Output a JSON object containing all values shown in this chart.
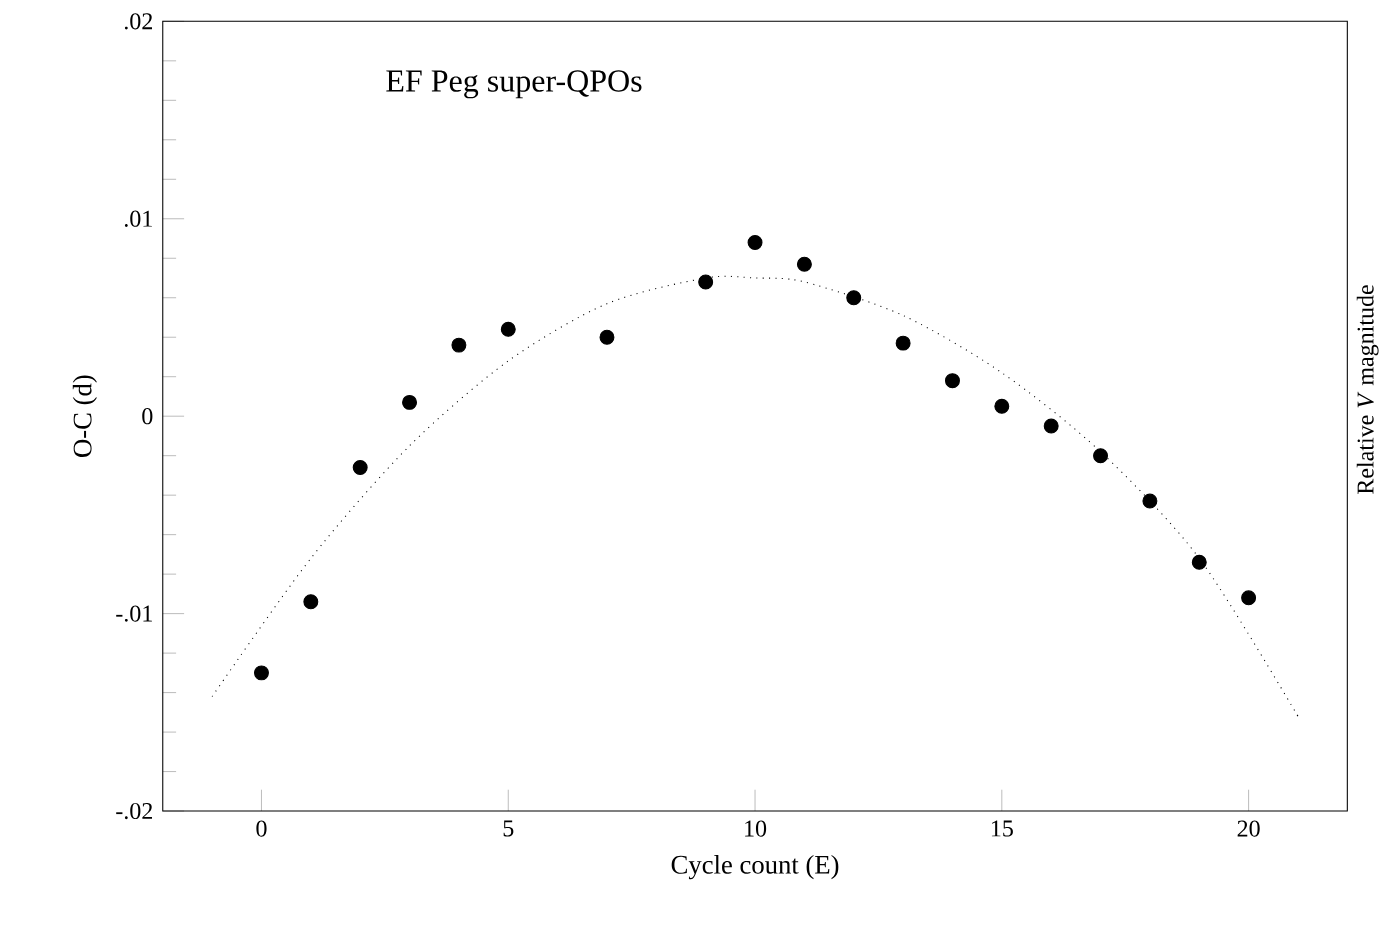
{
  "chart_data": {
    "type": "scatter",
    "title": "EF Peg super-QPOs",
    "xlabel": "Cycle count (E)",
    "ylabel": "O-C (d)",
    "y2label": "Relative *V* magnitude",
    "xlim": [
      -2,
      22
    ],
    "xticks": [
      0,
      5,
      10,
      15,
      20
    ],
    "ylim": [
      -0.02,
      0.02
    ],
    "yticks": [
      {
        "value": -0.02,
        "label": "-.02"
      },
      {
        "value": -0.01,
        "label": "-.01"
      },
      0,
      {
        "value": 0.01,
        "label": ".01"
      },
      {
        "value": 0.02,
        "label": ".02"
      }
    ],
    "grid": false,
    "series": [
      {
        "marker": "circle",
        "color": "#000000",
        "x": [
          0,
          1,
          2,
          3,
          4,
          5,
          7,
          9,
          10,
          11,
          12,
          13,
          14,
          15,
          16,
          17,
          18,
          19,
          20
        ],
        "values": [
          -0.013,
          -0.0094,
          -0.0026,
          0.0007,
          0.0036,
          0.0044,
          0.004,
          0.0068,
          0.0088,
          0.0077,
          0.006,
          0.0037,
          0.0018,
          0.0005,
          -0.0005,
          -0.002,
          -0.0043,
          -0.0074,
          -0.0092
        ]
      },
      {
        "type": "line",
        "line_style": "dotted",
        "marker": "none",
        "color": "#000000",
        "x": [
          -1,
          1,
          3,
          5,
          7,
          9,
          10,
          11,
          13,
          15,
          17,
          19,
          21
        ],
        "values": [
          -0.0142,
          -0.0072,
          -0.0015,
          0.0028,
          0.0057,
          0.007,
          0.007,
          0.0068,
          0.0051,
          0.0022,
          -0.0018,
          -0.0072,
          -0.0152
        ]
      }
    ]
  }
}
